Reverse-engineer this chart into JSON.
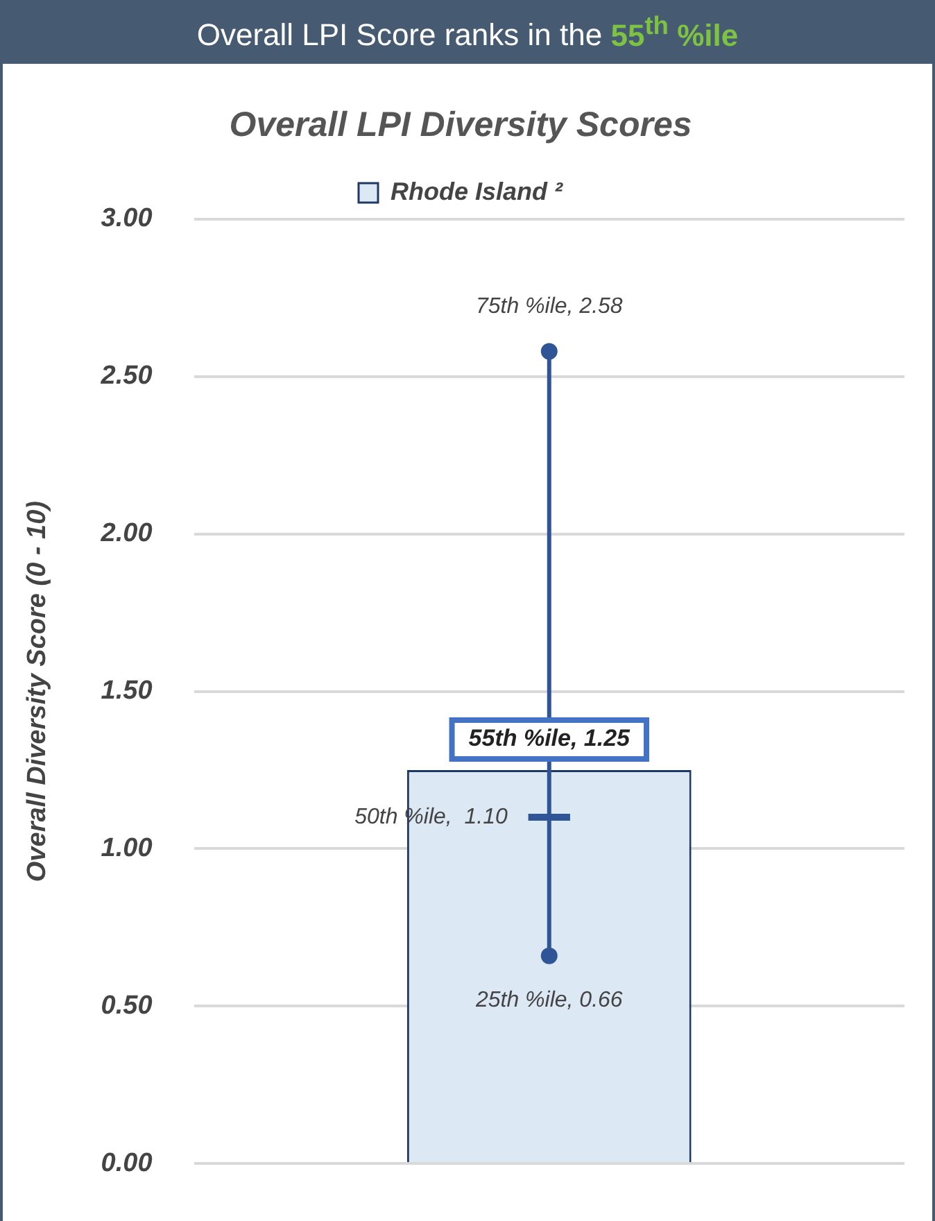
{
  "chart_data": {
    "type": "bar",
    "title": "Overall LPI Score ranks in the 55$^{th}$ %ile",
    "subtitle": "Overall LPI Diversity Scores",
    "ylabel": "Overall Diversity Score (0 - 10)",
    "categories": [
      null
    ],
    "series": [
      {
        "name": "Rhode Island ²",
        "color": "#dde8f5",
        "values": [
          1.25
        ],
        "value_labels": [
          "55th %ile, 1.25"
        ]
      },
      {
        "type": "box",
        "color": "#2f5597",
        "boxes": [
          {
            "low": 0.66,
            "q1": 1.1,
            "median": 1.1,
            "q3": 1.1,
            "high": 2.58
          }
        ]
      }
    ],
    "annotations": [
      {
        "text": "75th %ile, 2.58",
        "y": 2.58
      },
      "50th %ile,  1.10",
      {
        "text": "25th %ile, 0.66",
        "y": 0.66
      }
    ],
    "ylim": [
      0,
      3
    ],
    "yticks": [
      {
        "value": 0,
        "label": "0.00"
      },
      {
        "value": 0.5,
        "label": "0.50"
      },
      {
        "value": 1,
        "label": "1.00"
      },
      {
        "value": 1.5,
        "label": "1.50"
      },
      {
        "value": 2,
        "label": "2.00"
      },
      {
        "value": 2.5,
        "label": "2.50"
      },
      {
        "value": 3,
        "label": "3.00"
      }
    ],
    "grid": "y",
    "legend": "top"
  }
}
